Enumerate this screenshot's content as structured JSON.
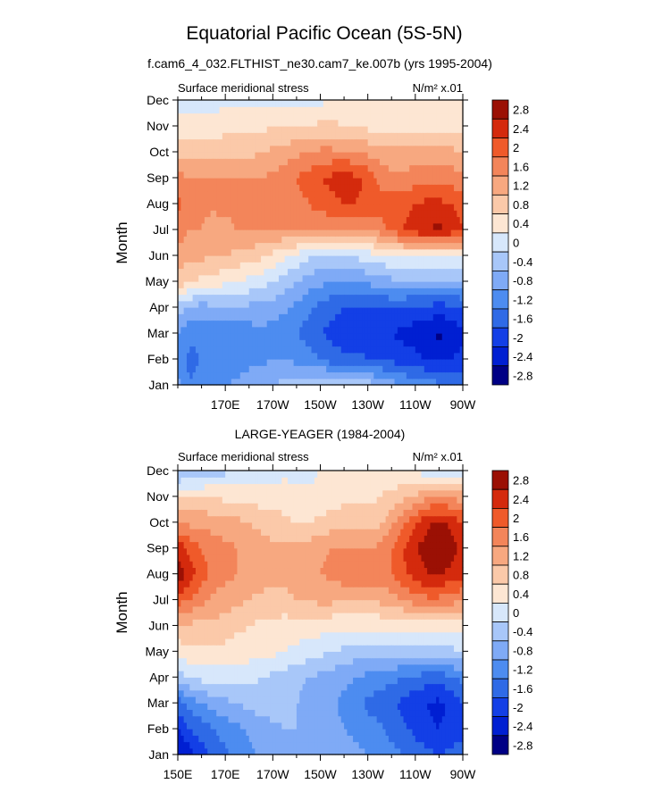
{
  "figure": {
    "title": "Equatorial Pacific Ocean (5S-5N)",
    "colors": [
      "#000085",
      "#001fd2",
      "#133fe6",
      "#2f6ae6",
      "#4d8cf0",
      "#7faaf6",
      "#a8c7f9",
      "#d7e7fb",
      "#fde6d3",
      "#fbc9a9",
      "#f7a880",
      "#f3855a",
      "#ef5a2a",
      "#d42a0d",
      "#9b1004"
    ]
  },
  "chart_data": [
    {
      "type": "heatmap",
      "subtitle": "f.cam6_4_032.FLTHIST_ne30.cam7_ke.007b (yrs 1995-2004)",
      "left_label": "Surface meridional stress",
      "right_label": "N/m² x.01",
      "ylabel": "Month",
      "y_ticks": [
        "Jan",
        "Feb",
        "Mar",
        "Apr",
        "May",
        "Jun",
        "Jul",
        "Aug",
        "Sep",
        "Oct",
        "Nov",
        "Dec"
      ],
      "x_ticks": [
        "170E",
        "170W",
        "150W",
        "130W",
        "110W",
        "90W"
      ],
      "x_tick_values": [
        170,
        190,
        210,
        230,
        250,
        270
      ],
      "xlim": [
        150,
        270
      ],
      "colorbar_labels": [
        "2.8",
        "2.4",
        "2",
        "1.6",
        "1.2",
        "0.8",
        "0.4",
        "0",
        "-0.4",
        "-0.8",
        "-1.2",
        "-1.6",
        "-2",
        "-2.4",
        "-2.8"
      ],
      "x": [
        150,
        155,
        160,
        165,
        170,
        175,
        180,
        185,
        190,
        195,
        200,
        205,
        210,
        215,
        220,
        225,
        230,
        235,
        240,
        245,
        250,
        255,
        260,
        265,
        270
      ],
      "z": [
        [
          -1.0,
          -1.6,
          -1.4,
          -1.3,
          -1.2,
          -1.1,
          -1.0,
          -0.9,
          -0.8,
          -0.7,
          -0.6,
          -0.5,
          -0.4,
          -0.4,
          -0.4,
          -0.5,
          -0.6,
          -0.8,
          -1.0,
          -1.2,
          -1.3,
          -1.4,
          -1.5,
          -1.6,
          -1.6
        ],
        [
          -1.4,
          -1.7,
          -1.6,
          -1.5,
          -1.5,
          -1.4,
          -1.3,
          -1.3,
          -1.2,
          -1.2,
          -1.3,
          -1.4,
          -1.6,
          -1.8,
          -1.9,
          -1.9,
          -2.0,
          -2.0,
          -2.1,
          -2.2,
          -2.3,
          -2.4,
          -2.5,
          -2.4,
          -2.3
        ],
        [
          -1.2,
          -1.5,
          -1.5,
          -1.4,
          -1.4,
          -1.4,
          -1.4,
          -1.3,
          -1.4,
          -1.5,
          -1.6,
          -1.8,
          -2.0,
          -2.1,
          -2.2,
          -2.2,
          -2.2,
          -2.3,
          -2.4,
          -2.5,
          -2.6,
          -2.7,
          -2.9,
          -2.7,
          -2.5
        ],
        [
          -0.6,
          -0.9,
          -1.0,
          -0.9,
          -0.9,
          -0.9,
          -0.9,
          -0.9,
          -1.0,
          -1.1,
          -1.3,
          -1.5,
          -1.7,
          -1.9,
          -2.0,
          -2.0,
          -2.0,
          -2.0,
          -2.0,
          -2.0,
          -2.1,
          -2.1,
          -2.2,
          -2.1,
          -2.0
        ],
        [
          0.6,
          0.5,
          0.3,
          0.2,
          0.1,
          0.0,
          -0.1,
          -0.2,
          -0.4,
          -0.6,
          -0.8,
          -1.0,
          -1.1,
          -1.2,
          -1.2,
          -1.2,
          -1.1,
          -1.0,
          -0.9,
          -0.9,
          -0.9,
          -0.9,
          -0.9,
          -0.9,
          -0.9
        ],
        [
          1.0,
          0.9,
          0.9,
          0.8,
          0.8,
          0.7,
          0.6,
          0.5,
          0.3,
          0.1,
          -0.1,
          -0.3,
          -0.4,
          -0.4,
          -0.4,
          -0.3,
          -0.2,
          -0.1,
          0.0,
          0.1,
          0.1,
          0.1,
          0.1,
          0.1,
          0.1
        ],
        [
          1.5,
          1.2,
          1.2,
          1.0,
          1.1,
          1.2,
          1.2,
          1.2,
          1.2,
          1.2,
          1.2,
          1.2,
          1.2,
          1.2,
          1.2,
          1.2,
          1.2,
          1.4,
          1.7,
          2.0,
          2.2,
          2.4,
          2.5,
          2.3,
          2.0
        ],
        [
          1.7,
          1.3,
          1.3,
          1.3,
          1.3,
          1.3,
          1.3,
          1.3,
          1.3,
          1.3,
          1.4,
          1.6,
          1.8,
          1.9,
          2.0,
          2.0,
          1.9,
          1.8,
          1.8,
          1.9,
          2.0,
          2.1,
          2.1,
          2.0,
          1.8
        ],
        [
          1.4,
          1.2,
          1.2,
          1.2,
          1.2,
          1.2,
          1.2,
          1.2,
          1.3,
          1.4,
          1.6,
          1.8,
          2.0,
          2.1,
          2.2,
          2.1,
          1.9,
          1.5,
          1.3,
          1.3,
          1.4,
          1.5,
          1.5,
          1.4,
          1.3
        ],
        [
          0.7,
          0.6,
          0.6,
          0.6,
          0.6,
          0.6,
          0.7,
          0.8,
          0.9,
          1.0,
          1.1,
          1.2,
          1.3,
          1.3,
          1.3,
          1.2,
          1.1,
          1.0,
          0.9,
          0.9,
          1.0,
          1.0,
          1.0,
          0.9,
          0.8
        ],
        [
          0.2,
          0.2,
          0.2,
          0.2,
          0.3,
          0.3,
          0.3,
          0.3,
          0.4,
          0.4,
          0.4,
          0.4,
          0.5,
          0.5,
          0.4,
          0.4,
          0.3,
          0.3,
          0.3,
          0.3,
          0.3,
          0.3,
          0.3,
          0.3,
          0.3
        ],
        [
          -0.3,
          -0.2,
          -0.2,
          -0.2,
          -0.1,
          -0.1,
          -0.1,
          -0.1,
          -0.1,
          -0.1,
          -0.1,
          -0.1,
          -0.1,
          0.0,
          0.0,
          0.0,
          0.0,
          0.0,
          0.0,
          0.0,
          0.0,
          0.0,
          0.0,
          0.0,
          0.0
        ]
      ]
    },
    {
      "type": "heatmap",
      "subtitle": "LARGE-YEAGER (1984-2004)",
      "left_label": "Surface meridional stress",
      "right_label": "N/m² x.01",
      "ylabel": "Month",
      "y_ticks": [
        "Jan",
        "Feb",
        "Mar",
        "Apr",
        "May",
        "Jun",
        "Jul",
        "Aug",
        "Sep",
        "Oct",
        "Nov",
        "Dec"
      ],
      "x_ticks": [
        "150E",
        "170E",
        "170W",
        "150W",
        "130W",
        "110W",
        "90W"
      ],
      "x_tick_values": [
        150,
        170,
        190,
        210,
        230,
        250,
        270
      ],
      "xlim": [
        150,
        270
      ],
      "colorbar_labels": [
        "2.8",
        "2.4",
        "2",
        "1.6",
        "1.2",
        "0.8",
        "0.4",
        "0",
        "-0.4",
        "-0.8",
        "-1.2",
        "-1.6",
        "-2",
        "-2.4",
        "-2.8"
      ],
      "x": [
        150,
        155,
        160,
        165,
        170,
        175,
        180,
        185,
        190,
        195,
        200,
        205,
        210,
        215,
        220,
        225,
        230,
        235,
        240,
        245,
        250,
        255,
        260,
        265,
        270
      ],
      "z": [
        [
          -2.8,
          -2.6,
          -2.2,
          -1.9,
          -1.7,
          -1.5,
          -1.3,
          -1.1,
          -1.0,
          -0.9,
          -0.8,
          -0.8,
          -0.8,
          -0.9,
          -1.0,
          -1.1,
          -1.2,
          -1.3,
          -1.5,
          -1.6,
          -1.8,
          -1.9,
          -2.0,
          -1.9,
          -1.8
        ],
        [
          -2.4,
          -2.0,
          -1.8,
          -1.6,
          -1.4,
          -1.3,
          -1.1,
          -1.0,
          -0.9,
          -0.8,
          -0.8,
          -0.9,
          -1.0,
          -1.1,
          -1.2,
          -1.3,
          -1.4,
          -1.5,
          -1.7,
          -1.9,
          -2.1,
          -2.3,
          -2.4,
          -2.3,
          -2.1
        ],
        [
          -1.8,
          -1.4,
          -1.2,
          -1.0,
          -0.9,
          -0.8,
          -0.7,
          -0.6,
          -0.6,
          -0.7,
          -0.8,
          -0.9,
          -1.0,
          -1.1,
          -1.3,
          -1.5,
          -1.7,
          -1.8,
          -1.9,
          -2.1,
          -2.3,
          -2.4,
          -2.5,
          -2.3,
          -2.0
        ],
        [
          -0.6,
          -0.4,
          -0.3,
          -0.2,
          -0.2,
          -0.2,
          -0.3,
          -0.4,
          -0.5,
          -0.6,
          -0.7,
          -0.8,
          -0.9,
          -1.0,
          -1.1,
          -1.2,
          -1.3,
          -1.4,
          -1.5,
          -1.6,
          -1.7,
          -1.8,
          -1.8,
          -1.7,
          -1.5
        ],
        [
          0.2,
          0.3,
          0.3,
          0.3,
          0.3,
          0.2,
          0.2,
          0.1,
          0.1,
          0.0,
          -0.1,
          -0.2,
          -0.3,
          -0.4,
          -0.5,
          -0.6,
          -0.6,
          -0.6,
          -0.6,
          -0.6,
          -0.6,
          -0.6,
          -0.6,
          -0.5,
          -0.4
        ],
        [
          0.7,
          0.7,
          0.7,
          0.7,
          0.6,
          0.5,
          0.4,
          0.3,
          0.3,
          0.2,
          0.2,
          0.2,
          0.2,
          0.1,
          0.1,
          0.1,
          0.1,
          0.1,
          0.1,
          0.1,
          0.1,
          0.1,
          0.1,
          0.1,
          0.1
        ],
        [
          1.8,
          1.6,
          1.3,
          1.1,
          1.0,
          0.9,
          0.8,
          0.7,
          0.7,
          0.7,
          0.8,
          0.8,
          0.9,
          0.9,
          0.9,
          0.9,
          0.9,
          0.9,
          1.0,
          1.2,
          1.4,
          1.5,
          1.5,
          1.4,
          1.2
        ],
        [
          2.7,
          2.2,
          1.8,
          1.5,
          1.3,
          1.2,
          1.1,
          1.0,
          0.9,
          0.9,
          1.0,
          1.1,
          1.2,
          1.3,
          1.4,
          1.5,
          1.4,
          1.4,
          1.6,
          1.9,
          2.2,
          2.4,
          2.4,
          2.3,
          2.1
        ],
        [
          2.3,
          1.9,
          1.6,
          1.4,
          1.3,
          1.2,
          1.1,
          1.0,
          0.9,
          0.9,
          0.9,
          1.0,
          1.1,
          1.2,
          1.2,
          1.2,
          1.2,
          1.3,
          1.6,
          2.0,
          2.4,
          2.6,
          2.9,
          2.6,
          2.3
        ],
        [
          1.2,
          1.1,
          1.1,
          1.0,
          1.0,
          0.9,
          0.8,
          0.7,
          0.6,
          0.5,
          0.4,
          0.4,
          0.5,
          0.6,
          0.6,
          0.6,
          0.6,
          0.7,
          1.1,
          1.5,
          1.9,
          2.3,
          2.5,
          2.3,
          2.0
        ],
        [
          0.4,
          0.4,
          0.4,
          0.4,
          0.3,
          0.3,
          0.3,
          0.2,
          0.2,
          0.2,
          0.1,
          0.1,
          0.1,
          0.2,
          0.3,
          0.3,
          0.3,
          0.4,
          0.5,
          0.7,
          0.9,
          1.1,
          1.2,
          1.1,
          1.0
        ],
        [
          -0.9,
          -0.8,
          -0.7,
          -0.6,
          -0.5,
          -0.4,
          -0.3,
          -0.2,
          -0.2,
          -0.1,
          -0.1,
          -0.1,
          0.0,
          0.1,
          0.2,
          0.2,
          0.3,
          0.2,
          0.1,
          0.0,
          -0.1,
          -0.2,
          -0.3,
          -0.3,
          -0.3
        ]
      ]
    }
  ]
}
